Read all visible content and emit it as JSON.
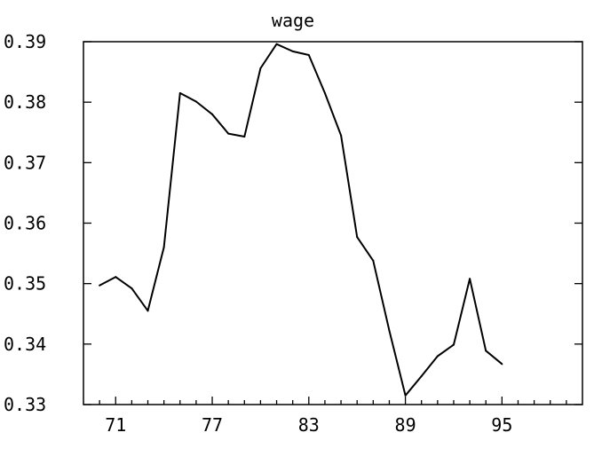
{
  "chart_data": {
    "type": "line",
    "title": "wage",
    "xlabel": "",
    "ylabel": "",
    "xlim": [
      69,
      100
    ],
    "ylim": [
      0.33,
      0.39
    ],
    "x_ticks": [
      71,
      77,
      83,
      89,
      95
    ],
    "x_tick_labels": [
      "71",
      "77",
      "83",
      "89",
      "95"
    ],
    "y_ticks": [
      0.33,
      0.34,
      0.35,
      0.36,
      0.37,
      0.38,
      0.39
    ],
    "y_tick_labels": [
      "0.33",
      "0.34",
      "0.35",
      "0.36",
      "0.37",
      "0.38",
      "0.39"
    ],
    "x_minor_step": 1,
    "grid": false,
    "line_color": "#000000",
    "series": [
      {
        "x": [
          70,
          71,
          72,
          73,
          74,
          75,
          76,
          77,
          78,
          79,
          80,
          81,
          82,
          83,
          84,
          85,
          86,
          87,
          88,
          89,
          90,
          91,
          92,
          93,
          94,
          95
        ],
        "values": [
          0.3497,
          0.3511,
          0.3492,
          0.3455,
          0.356,
          0.3815,
          0.3801,
          0.378,
          0.3748,
          0.3743,
          0.3856,
          0.3896,
          0.3884,
          0.3878,
          0.3815,
          0.3745,
          0.3577,
          0.3538,
          0.3422,
          0.3315,
          0.3347,
          0.338,
          0.3399,
          0.3508,
          0.3389,
          0.3367
        ]
      }
    ]
  }
}
